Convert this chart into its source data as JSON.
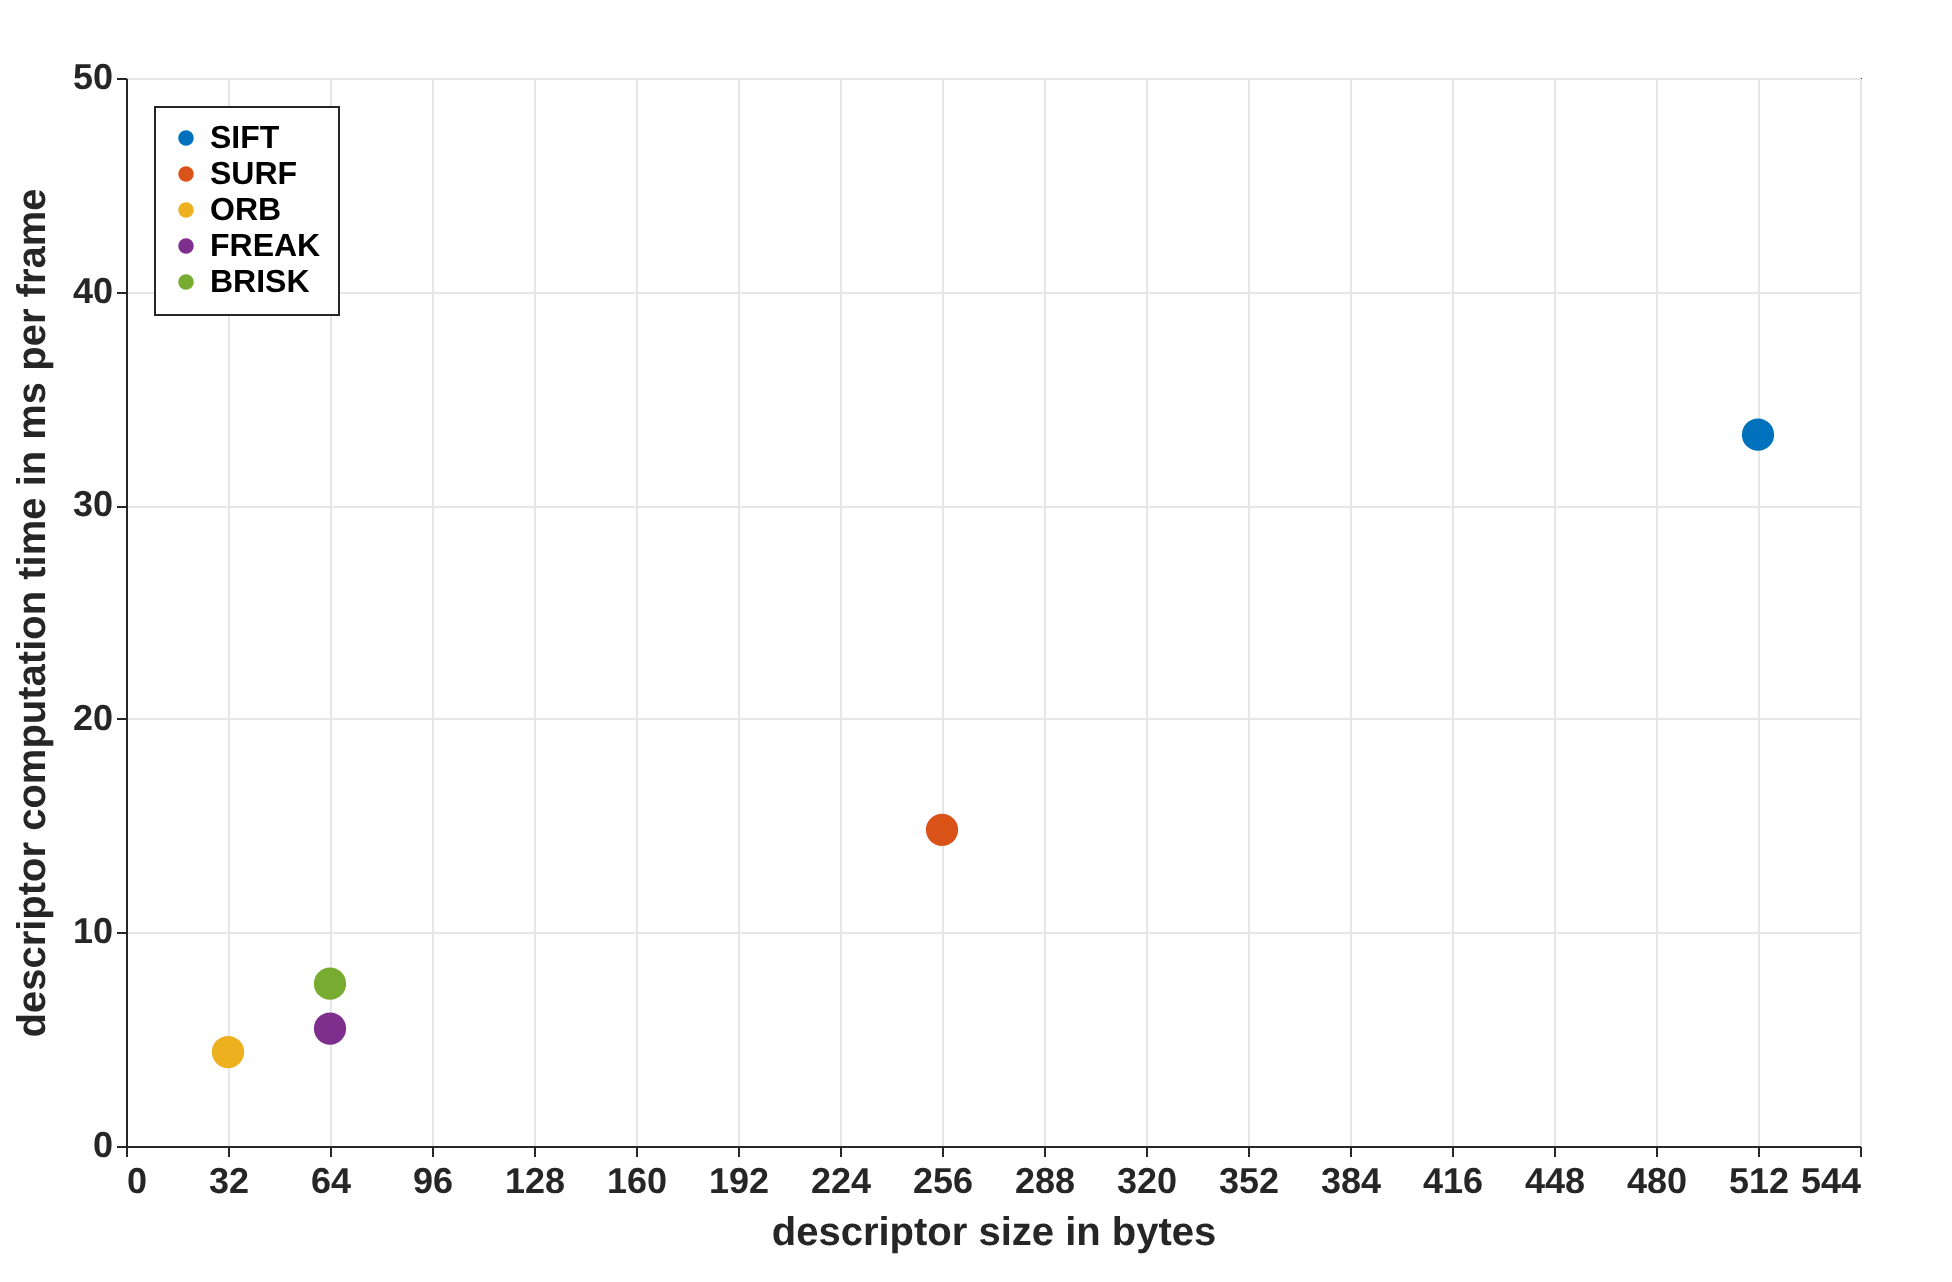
{
  "chart_data": {
    "type": "scatter",
    "xlabel": "descriptor size in bytes",
    "ylabel": "descriptor computation time in ms per frame",
    "xlim": [
      0,
      544
    ],
    "xticks": [
      0,
      32,
      64,
      96,
      128,
      160,
      192,
      224,
      256,
      288,
      320,
      352,
      384,
      416,
      448,
      480,
      512,
      544
    ],
    "ylim": [
      0,
      50
    ],
    "yticks": [
      0,
      10,
      20,
      30,
      40,
      50
    ],
    "grid": true,
    "legend": "top left",
    "marker": "circle",
    "series": [
      {
        "name": "SIFT",
        "color": "#0072bd",
        "x": [
          512
        ],
        "values": [
          33.3
        ]
      },
      {
        "name": "SURF",
        "color": "#d95319",
        "x": [
          256
        ],
        "values": [
          14.8
        ]
      },
      {
        "name": "ORB",
        "color": "#edb120",
        "x": [
          32
        ],
        "values": [
          4.4
        ]
      },
      {
        "name": "FREAK",
        "color": "#7e2f8e",
        "x": [
          64
        ],
        "values": [
          5.5
        ]
      },
      {
        "name": "BRISK",
        "color": "#77ac30",
        "x": [
          64
        ],
        "values": [
          7.6
        ]
      }
    ]
  }
}
